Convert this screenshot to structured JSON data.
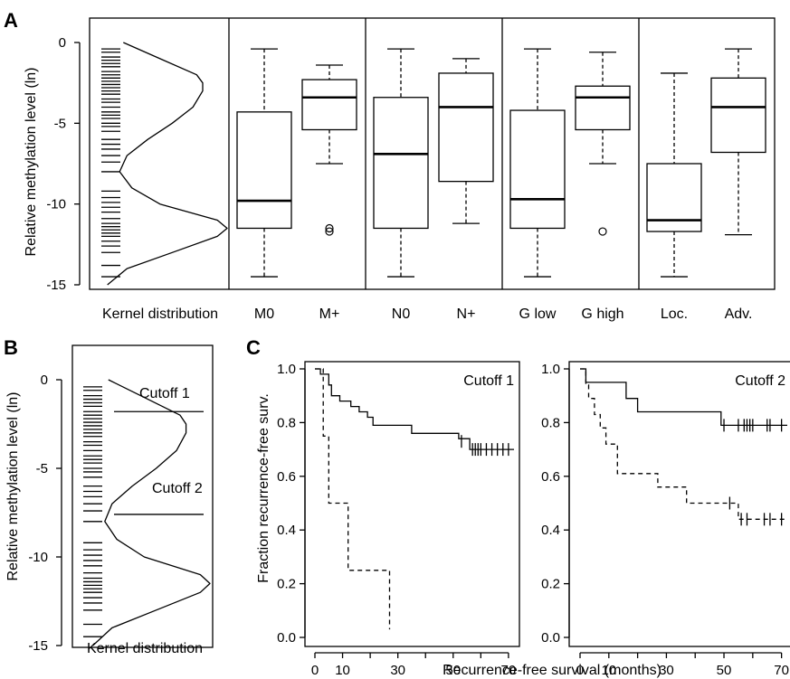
{
  "panels": {
    "a": {
      "letter": "A",
      "ylabel": "Relative methylation level (ln)",
      "kernel_label": "Kernel distribution",
      "yticks": [
        "0",
        "-5",
        "-10",
        "-15"
      ],
      "groups": [
        "M0",
        "M+",
        "N0",
        "N+",
        "G low",
        "G high",
        "Loc.",
        "Adv."
      ]
    },
    "b": {
      "letter": "B",
      "ylabel": "Relative methylation level (ln)",
      "kernel_label": "Kernel distribution",
      "yticks": [
        "0",
        "-5",
        "-10",
        "-15"
      ],
      "cutoff1_label": "Cutoff 1",
      "cutoff2_label": "Cutoff 2"
    },
    "c": {
      "letter": "C",
      "ylabel": "Fraction recurrence-free surv.",
      "xlabel": "Recurrence-free survival (months)",
      "yticks": [
        "0.0",
        "0.2",
        "0.4",
        "0.6",
        "0.8",
        "1.0"
      ],
      "xticks": [
        "0",
        "10",
        "30",
        "50",
        "70"
      ],
      "left_title": "Cutoff 1",
      "right_title": "Cutoff 2"
    }
  },
  "chart_data": [
    {
      "type": "boxplot",
      "panel": "A",
      "ylabel": "Relative methylation level (ln)",
      "ylim": [
        -15,
        0
      ],
      "rug_values": [
        -0.4,
        -0.6,
        -0.9,
        -1.1,
        -1.3,
        -1.5,
        -1.8,
        -2.0,
        -2.2,
        -2.4,
        -2.6,
        -2.8,
        -3.0,
        -3.2,
        -3.5,
        -3.7,
        -4.0,
        -4.3,
        -4.5,
        -4.7,
        -5.0,
        -5.2,
        -5.5,
        -6.0,
        -6.3,
        -6.6,
        -7.0,
        -7.4,
        -8.0,
        -9.2,
        -9.6,
        -9.9,
        -10.2,
        -10.5,
        -10.9,
        -11.2,
        -11.4,
        -11.6,
        -11.8,
        -12.0,
        -12.3,
        -12.6,
        -13.0,
        -13.8,
        -14.5
      ],
      "kernel": {
        "y": [
          -15,
          -14,
          -13,
          -12,
          -11.5,
          -11,
          -10,
          -9,
          -8,
          -7,
          -6,
          -5,
          -4,
          -3,
          -2.5,
          -2,
          -1,
          0
        ],
        "density": [
          0.02,
          0.18,
          0.55,
          0.92,
          1.0,
          0.92,
          0.45,
          0.22,
          0.12,
          0.18,
          0.35,
          0.55,
          0.72,
          0.8,
          0.8,
          0.75,
          0.45,
          0.15
        ]
      },
      "boxes": [
        {
          "label": "M0",
          "min": -14.5,
          "q1": -11.5,
          "median": -9.8,
          "q3": -4.3,
          "max": -0.4,
          "outliers": []
        },
        {
          "label": "M+",
          "min": -7.5,
          "q1": -5.4,
          "median": -3.4,
          "q3": -2.3,
          "max": -1.4,
          "outliers": [
            -11.5,
            -11.7
          ]
        },
        {
          "label": "N0",
          "min": -14.5,
          "q1": -11.5,
          "median": -6.9,
          "q3": -3.4,
          "max": -0.4,
          "outliers": []
        },
        {
          "label": "N+",
          "min": -11.2,
          "q1": -8.6,
          "median": -4.0,
          "q3": -1.9,
          "max": -1.0,
          "outliers": []
        },
        {
          "label": "G low",
          "min": -14.5,
          "q1": -11.5,
          "median": -9.7,
          "q3": -4.2,
          "max": -0.4,
          "outliers": []
        },
        {
          "label": "G high",
          "min": -7.5,
          "q1": -5.4,
          "median": -3.4,
          "q3": -2.7,
          "max": -0.6,
          "outliers": [
            -11.7
          ]
        },
        {
          "label": "Loc.",
          "min": -14.5,
          "q1": -11.7,
          "median": -11.0,
          "q3": -7.5,
          "max": -1.9,
          "outliers": []
        },
        {
          "label": "Adv.",
          "min": -11.9,
          "q1": -6.8,
          "median": -4.0,
          "q3": -2.2,
          "max": -0.4,
          "outliers": []
        }
      ]
    },
    {
      "type": "density",
      "panel": "B",
      "ylim": [
        -15,
        1
      ],
      "cutoffs": [
        {
          "label": "Cutoff 1",
          "value": -1.8
        },
        {
          "label": "Cutoff 2",
          "value": -7.6
        }
      ]
    },
    {
      "type": "line",
      "panel": "C-left",
      "title": "Cutoff 1",
      "xlim": [
        0,
        72
      ],
      "ylim": [
        0,
        1
      ],
      "series": [
        {
          "style": "solid",
          "steps": [
            [
              0,
              1.0
            ],
            [
              2,
              0.98
            ],
            [
              5,
              0.94
            ],
            [
              6,
              0.9
            ],
            [
              9,
              0.88
            ],
            [
              13,
              0.86
            ],
            [
              16,
              0.84
            ],
            [
              19,
              0.82
            ],
            [
              21,
              0.79
            ],
            [
              35,
              0.76
            ],
            [
              52,
              0.74
            ],
            [
              56,
              0.7
            ],
            [
              72,
              0.7
            ]
          ],
          "censored": [
            [
              53,
              0.73
            ],
            [
              57,
              0.7
            ],
            [
              58,
              0.7
            ],
            [
              59,
              0.7
            ],
            [
              60,
              0.7
            ],
            [
              62,
              0.7
            ],
            [
              64,
              0.7
            ],
            [
              66,
              0.7
            ],
            [
              68,
              0.7
            ],
            [
              70,
              0.7
            ]
          ]
        },
        {
          "style": "dashed",
          "steps": [
            [
              0,
              1.0
            ],
            [
              3,
              0.75
            ],
            [
              5,
              0.5
            ],
            [
              12,
              0.25
            ],
            [
              27,
              0.25
            ],
            [
              27,
              0.03
            ]
          ],
          "censored": []
        }
      ]
    },
    {
      "type": "line",
      "panel": "C-right",
      "title": "Cutoff 2",
      "xlim": [
        0,
        72
      ],
      "ylim": [
        0,
        1
      ],
      "series": [
        {
          "style": "solid",
          "steps": [
            [
              0,
              1.0
            ],
            [
              2,
              0.95
            ],
            [
              16,
              0.89
            ],
            [
              20,
              0.84
            ],
            [
              49,
              0.79
            ],
            [
              72,
              0.79
            ]
          ],
          "censored": [
            [
              50,
              0.79
            ],
            [
              55,
              0.79
            ],
            [
              57,
              0.79
            ],
            [
              58,
              0.79
            ],
            [
              59,
              0.79
            ],
            [
              60,
              0.79
            ],
            [
              65,
              0.79
            ],
            [
              66,
              0.79
            ],
            [
              70,
              0.79
            ]
          ]
        },
        {
          "style": "dashed",
          "steps": [
            [
              0,
              1.0
            ],
            [
              2,
              0.94
            ],
            [
              3,
              0.89
            ],
            [
              5,
              0.83
            ],
            [
              7,
              0.78
            ],
            [
              9,
              0.72
            ],
            [
              13,
              0.61
            ],
            [
              27,
              0.56
            ],
            [
              37,
              0.5
            ],
            [
              53,
              0.5
            ],
            [
              55,
              0.44
            ],
            [
              72,
              0.44
            ]
          ],
          "censored": [
            [
              52,
              0.5
            ],
            [
              56,
              0.44
            ],
            [
              58,
              0.44
            ],
            [
              64,
              0.44
            ],
            [
              66,
              0.44
            ],
            [
              70,
              0.44
            ]
          ]
        }
      ]
    }
  ]
}
